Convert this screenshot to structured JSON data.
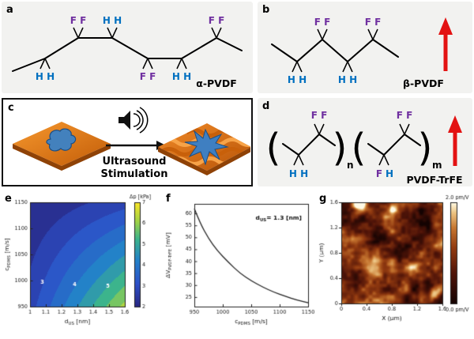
{
  "figure": {
    "panel_labels": {
      "a": "a",
      "b": "b",
      "c": "c",
      "d": "d",
      "e": "e",
      "f": "f",
      "g": "g"
    }
  },
  "colors": {
    "fluorine_label": "#7030a0",
    "hydrogen_label": "#0070c0",
    "arrow_red": "#e31212",
    "surface_orange": "#e07818",
    "cell_blue": "#3f7fc1"
  },
  "panel_a": {
    "label": "a",
    "top_groups": [
      {
        "text": "F F"
      },
      {
        "text": "H H"
      },
      {
        "text": "F F"
      }
    ],
    "bottom_groups": [
      {
        "text": "H H"
      },
      {
        "text": "F F"
      },
      {
        "text": "H H"
      }
    ],
    "molecule": "α-PVDF"
  },
  "panel_b": {
    "label": "b",
    "top_groups": [
      {
        "text": "F F"
      },
      {
        "text": "F F"
      }
    ],
    "bottom_groups": [
      {
        "text": "H H"
      },
      {
        "text": "H H"
      }
    ],
    "molecule": "β-PVDF"
  },
  "panel_c": {
    "label": "c",
    "caption_line1": "Ultrasound",
    "caption_line2": "Stimulation"
  },
  "panel_d": {
    "label": "d",
    "top_groups": [
      {
        "text": "F F"
      },
      {
        "text": "F F"
      }
    ],
    "bottom_left": "H H",
    "bottom_mixed_f": "F",
    "bottom_mixed_h": "H",
    "bracket_open": "(",
    "bracket_close": ")",
    "sub_n": "n",
    "sub_m": "m",
    "molecule": "PVDF-TrFE"
  },
  "chart_data": [
    {
      "panel": "e",
      "type": "heatmap",
      "xlabel": {
        "pre": "d",
        "sub": "US",
        "post": " [nm]"
      },
      "ylabel": {
        "pre": "c",
        "sub": "PDMS",
        "post": " [m/s]"
      },
      "xlim": [
        1,
        1.6
      ],
      "ylim": [
        950,
        1150
      ],
      "xticks": [
        1,
        1.1,
        1.2,
        1.3,
        1.4,
        1.5,
        1.6
      ],
      "yticks": [
        950,
        1000,
        1050,
        1100,
        1150
      ],
      "colorbar": {
        "title": "Δp [kPa]",
        "ticks": [
          2,
          3,
          4,
          5,
          6,
          7
        ],
        "lim": [
          2,
          7
        ]
      },
      "grid_d_us": [
        1,
        1.15,
        1.3,
        1.45,
        1.6
      ],
      "grid_c_pdms": [
        950,
        1000,
        1050,
        1100,
        1150
      ],
      "values": [
        [
          2.8,
          3.65,
          4.5,
          5.35,
          6.2
        ],
        [
          2.6,
          3.29,
          3.98,
          4.66,
          5.35
        ],
        [
          2.4,
          2.93,
          3.45,
          3.98,
          4.5
        ],
        [
          2.2,
          2.56,
          2.93,
          3.29,
          3.65
        ],
        [
          2.0,
          2.2,
          2.4,
          2.6,
          2.8
        ]
      ],
      "contour_labels": [
        {
          "v": "3",
          "fx": 0.13,
          "fy": 0.78
        },
        {
          "v": "4",
          "fx": 0.47,
          "fy": 0.8
        },
        {
          "v": "5",
          "fx": 0.82,
          "fy": 0.82
        }
      ]
    },
    {
      "panel": "f",
      "type": "line",
      "xlabel": {
        "pre": "c",
        "sub": "PDMS",
        "post": " [m/s]"
      },
      "ylabel": {
        "pre": "ΔV",
        "sub": "PVDF-TrFE",
        "post": " [mV]"
      },
      "x": [
        950,
        960,
        975,
        990,
        1010,
        1030,
        1050,
        1070,
        1090,
        1110,
        1130,
        1150
      ],
      "y": [
        62,
        56,
        49.5,
        44.5,
        39.5,
        35,
        31.8,
        29.2,
        27,
        25.3,
        23.8,
        22.6
      ],
      "xlim": [
        950,
        1150
      ],
      "ylim": [
        21,
        64
      ],
      "xticks": [
        950,
        1000,
        1050,
        1100,
        1150
      ],
      "yticks": [
        25,
        30,
        35,
        40,
        45,
        50,
        55,
        60
      ],
      "annotation": {
        "pre": "d",
        "sub": "US",
        "post": "= 1.3 [nm]"
      }
    },
    {
      "panel": "g",
      "type": "heatmap",
      "xlabel": "X (μm)",
      "ylabel": "Y (μm)",
      "xlim": [
        0,
        1.6
      ],
      "ylim": [
        0,
        1.6
      ],
      "xticks": [
        0,
        0.4,
        0.8,
        1.2,
        1.6
      ],
      "yticks": [
        0,
        0.4,
        0.8,
        1.2,
        1.6
      ],
      "colorbar": {
        "top_label": "2.0 pm/V",
        "bottom_label": "0.0 pm/V",
        "lim": [
          0,
          2
        ]
      }
    }
  ]
}
